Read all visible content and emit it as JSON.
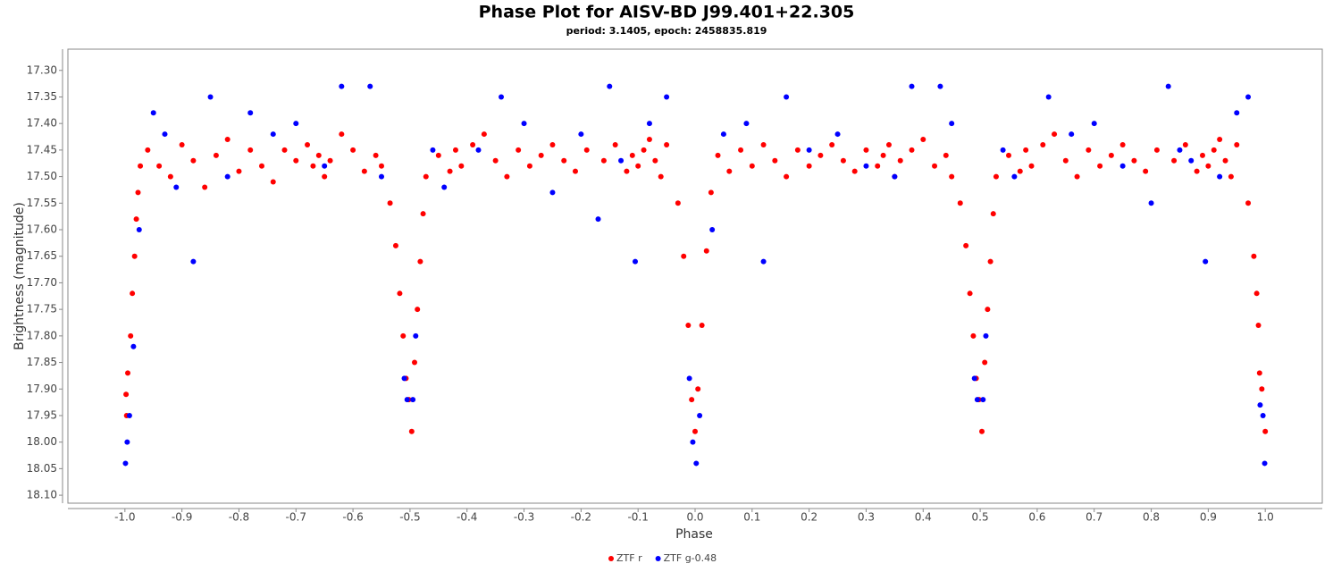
{
  "chart_data": {
    "type": "scatter",
    "title": "Phase Plot for AISV-BD J99.401+22.305",
    "subtitle": "period: 3.1405, epoch: 2458835.819",
    "x_label": "Phase",
    "y_label": "Brightness (magnitude)",
    "xlim": [
      -1.1,
      1.1
    ],
    "ylim": [
      17.26,
      18.115
    ],
    "y_inverted": true,
    "grid": false,
    "legend": "bottom",
    "xticks": [
      {
        "value": -1.0,
        "label": "-1.0"
      },
      -0.9,
      -0.8,
      -0.7,
      -0.6,
      -0.5,
      -0.4,
      -0.3,
      -0.2,
      -0.1,
      {
        "value": 0.0,
        "label": "0.0"
      },
      0.1,
      0.2,
      0.3,
      0.4,
      0.5,
      0.6,
      0.7,
      0.8,
      0.9,
      {
        "value": 1.0,
        "label": "1.0"
      }
    ],
    "yticks": [
      {
        "value": 17.3,
        "label": "17.30"
      },
      17.35,
      {
        "value": 17.4,
        "label": "17.40"
      },
      17.45,
      {
        "value": 17.5,
        "label": "17.50"
      },
      17.55,
      {
        "value": 17.6,
        "label": "17.60"
      },
      17.65,
      {
        "value": 17.7,
        "label": "17.70"
      },
      17.75,
      {
        "value": 17.8,
        "label": "17.80"
      },
      17.85,
      {
        "value": 17.9,
        "label": "17.90"
      },
      17.95,
      {
        "value": 18.0,
        "label": "18.00"
      },
      18.05,
      {
        "value": 18.1,
        "label": "18.10"
      }
    ],
    "series": [
      {
        "name": "ZTF r",
        "color": "#ff0000",
        "x": [
          -0.998,
          -0.995,
          -0.99,
          -0.987,
          -0.983,
          -0.98,
          -0.977,
          -0.973,
          -0.997,
          -0.96,
          -0.94,
          -0.92,
          -0.9,
          -0.88,
          -0.86,
          -0.84,
          -0.82,
          -0.8,
          -0.78,
          -0.76,
          -0.74,
          -0.72,
          -0.7,
          -0.68,
          -0.67,
          -0.66,
          -0.65,
          -0.64,
          -0.62,
          -0.6,
          -0.58,
          -0.56,
          -0.55,
          -0.535,
          -0.525,
          -0.518,
          -0.512,
          -0.507,
          -0.502,
          -0.497,
          -0.492,
          -0.487,
          -0.482,
          -0.477,
          -0.472,
          -0.45,
          -0.43,
          -0.42,
          -0.41,
          -0.39,
          -0.37,
          -0.35,
          -0.33,
          -0.31,
          -0.29,
          -0.27,
          -0.25,
          -0.23,
          -0.21,
          -0.19,
          -0.16,
          -0.14,
          -0.12,
          -0.11,
          -0.1,
          -0.09,
          -0.08,
          -0.07,
          -0.06,
          -0.05,
          -0.03,
          -0.02,
          -0.012,
          -0.006,
          0.0,
          0.005,
          0.012,
          0.02,
          0.028,
          0.04,
          0.06,
          0.08,
          0.1,
          0.12,
          0.14,
          0.16,
          0.18,
          0.2,
          0.22,
          0.24,
          0.26,
          0.28,
          0.3,
          0.32,
          0.33,
          0.34,
          0.35,
          0.36,
          0.38,
          0.4,
          0.42,
          0.44,
          0.45,
          0.465,
          0.475,
          0.482,
          0.488,
          0.493,
          0.498,
          0.503,
          0.508,
          0.513,
          0.518,
          0.523,
          0.528,
          0.55,
          0.57,
          0.58,
          0.59,
          0.61,
          0.63,
          0.65,
          0.67,
          0.69,
          0.71,
          0.73,
          0.75,
          0.77,
          0.79,
          0.81,
          0.84,
          0.86,
          0.88,
          0.89,
          0.9,
          0.91,
          0.92,
          0.93,
          0.94,
          0.95,
          0.97,
          0.98,
          0.988,
          0.994,
          1.0,
          0.985,
          0.99
        ],
        "y": [
          17.91,
          17.87,
          17.8,
          17.72,
          17.65,
          17.58,
          17.53,
          17.48,
          17.95,
          17.45,
          17.48,
          17.5,
          17.44,
          17.47,
          17.52,
          17.46,
          17.43,
          17.49,
          17.45,
          17.48,
          17.51,
          17.45,
          17.47,
          17.44,
          17.48,
          17.46,
          17.5,
          17.47,
          17.42,
          17.45,
          17.49,
          17.46,
          17.48,
          17.55,
          17.63,
          17.72,
          17.8,
          17.88,
          17.92,
          17.98,
          17.85,
          17.75,
          17.66,
          17.57,
          17.5,
          17.46,
          17.49,
          17.45,
          17.48,
          17.44,
          17.42,
          17.47,
          17.5,
          17.45,
          17.48,
          17.46,
          17.44,
          17.47,
          17.49,
          17.45,
          17.47,
          17.44,
          17.49,
          17.46,
          17.48,
          17.45,
          17.43,
          17.47,
          17.5,
          17.44,
          17.55,
          17.65,
          17.78,
          17.92,
          17.98,
          17.9,
          17.78,
          17.64,
          17.53,
          17.46,
          17.49,
          17.45,
          17.48,
          17.44,
          17.47,
          17.5,
          17.45,
          17.48,
          17.46,
          17.44,
          17.47,
          17.49,
          17.45,
          17.48,
          17.46,
          17.44,
          17.5,
          17.47,
          17.45,
          17.43,
          17.48,
          17.46,
          17.5,
          17.55,
          17.63,
          17.72,
          17.8,
          17.88,
          17.92,
          17.98,
          17.85,
          17.75,
          17.66,
          17.57,
          17.5,
          17.46,
          17.49,
          17.45,
          17.48,
          17.44,
          17.42,
          17.47,
          17.5,
          17.45,
          17.48,
          17.46,
          17.44,
          17.47,
          17.49,
          17.45,
          17.47,
          17.44,
          17.49,
          17.46,
          17.48,
          17.45,
          17.43,
          17.47,
          17.5,
          17.44,
          17.55,
          17.65,
          17.78,
          17.9,
          17.98,
          17.72,
          17.87
        ]
      },
      {
        "name": "ZTF g-0.48",
        "color": "#0000ff",
        "x": [
          -0.999,
          -0.996,
          -0.992,
          -0.985,
          -0.975,
          -0.95,
          -0.93,
          -0.91,
          -0.88,
          -0.85,
          -0.82,
          -0.78,
          -0.74,
          -0.7,
          -0.65,
          -0.62,
          -0.57,
          -0.55,
          -0.51,
          -0.505,
          -0.495,
          -0.49,
          -0.46,
          -0.44,
          -0.38,
          -0.34,
          -0.3,
          -0.25,
          -0.2,
          -0.17,
          -0.15,
          -0.13,
          -0.105,
          -0.08,
          -0.05,
          -0.01,
          -0.004,
          0.002,
          0.008,
          0.03,
          0.05,
          0.09,
          0.12,
          0.16,
          0.2,
          0.25,
          0.3,
          0.35,
          0.38,
          0.43,
          0.45,
          0.49,
          0.495,
          0.505,
          0.51,
          0.54,
          0.56,
          0.62,
          0.66,
          0.7,
          0.75,
          0.8,
          0.83,
          0.85,
          0.87,
          0.895,
          0.92,
          0.95,
          0.97,
          0.991,
          0.996,
          0.999
        ],
        "y": [
          18.04,
          18.0,
          17.95,
          17.82,
          17.6,
          17.38,
          17.42,
          17.52,
          17.66,
          17.35,
          17.5,
          17.38,
          17.42,
          17.4,
          17.48,
          17.33,
          17.33,
          17.5,
          17.88,
          17.92,
          17.92,
          17.8,
          17.45,
          17.52,
          17.45,
          17.35,
          17.4,
          17.53,
          17.42,
          17.58,
          17.33,
          17.47,
          17.66,
          17.4,
          17.35,
          17.88,
          18.0,
          18.04,
          17.95,
          17.6,
          17.42,
          17.4,
          17.66,
          17.35,
          17.45,
          17.42,
          17.48,
          17.5,
          17.33,
          17.33,
          17.4,
          17.88,
          17.92,
          17.92,
          17.8,
          17.45,
          17.5,
          17.35,
          17.42,
          17.4,
          17.48,
          17.55,
          17.33,
          17.45,
          17.47,
          17.66,
          17.5,
          17.38,
          17.35,
          17.93,
          17.95,
          18.04
        ]
      }
    ]
  }
}
